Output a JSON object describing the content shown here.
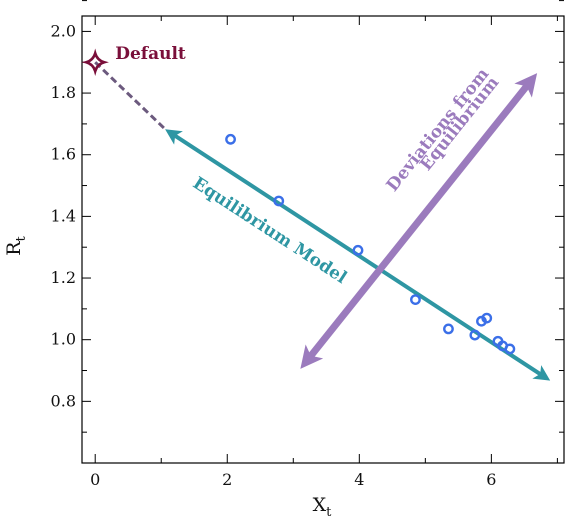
{
  "chart_data": {
    "type": "scatter",
    "xlabel": "X",
    "xlabel_sub": "t",
    "ylabel": "R",
    "ylabel_sub": "t",
    "xlim": [
      -0.2,
      7.1
    ],
    "ylim": [
      0.6,
      2.05
    ],
    "x_ticks": [
      0,
      2,
      4,
      6
    ],
    "y_ticks": [
      0.8,
      1.0,
      1.2,
      1.4,
      1.6,
      1.8,
      2.0
    ],
    "x_tick_labels": [
      "0",
      "2",
      "4",
      "6"
    ],
    "y_tick_labels": [
      "0.8",
      "1.0",
      "1.2",
      "1.4",
      "1.6",
      "1.8",
      "2.0"
    ],
    "grid": false,
    "points": [
      {
        "x": 2.05,
        "y": 1.65
      },
      {
        "x": 2.78,
        "y": 1.45
      },
      {
        "x": 3.98,
        "y": 1.29
      },
      {
        "x": 4.85,
        "y": 1.13
      },
      {
        "x": 5.35,
        "y": 1.035
      },
      {
        "x": 5.75,
        "y": 1.015
      },
      {
        "x": 5.85,
        "y": 1.06
      },
      {
        "x": 5.93,
        "y": 1.07
      },
      {
        "x": 6.1,
        "y": 0.995
      },
      {
        "x": 6.17,
        "y": 0.98
      },
      {
        "x": 6.28,
        "y": 0.97
      }
    ],
    "default_point": {
      "x": 0.0,
      "y": 1.9,
      "label": "Default"
    },
    "equilibrium_line": {
      "x_start": 1.15,
      "y_start": 1.67,
      "x_end": 6.8,
      "y_end": 0.88,
      "label": "Equilibrium Model"
    },
    "deviation_arrow": {
      "x_start": 3.2,
      "y_start": 0.93,
      "x_end": 6.6,
      "y_end": 1.84,
      "label_line1": "Deviations from",
      "label_line2": "Equilibrium"
    },
    "colors": {
      "points": "#3b6fe8",
      "default": "#7a0f3a",
      "equilibrium": "#2e96a3",
      "deviation": "#9b7bbd",
      "dashed": "#6c5a7e"
    }
  }
}
